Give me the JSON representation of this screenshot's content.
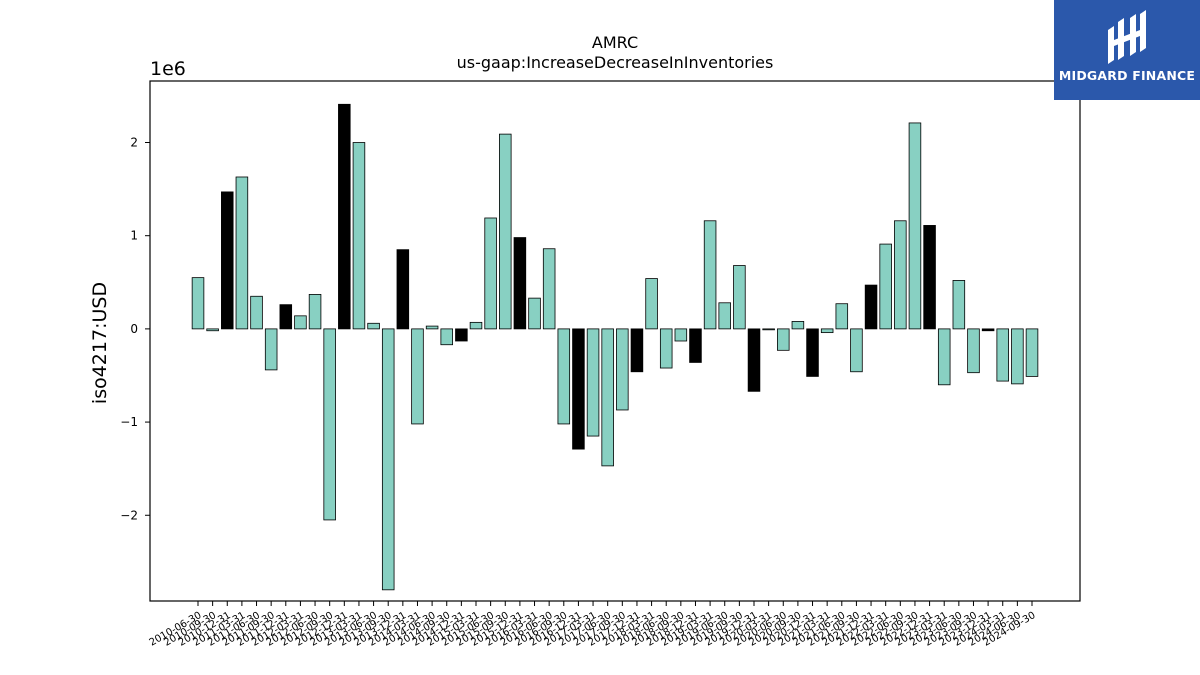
{
  "chart_data": {
    "type": "bar",
    "title": "AMRC\nus-gaap:IncreaseDecreaseInInventories",
    "title_lines": [
      "AMRC",
      "us-gaap:IncreaseDecreaseInInventories"
    ],
    "ylabel": "iso4217:USD",
    "offset_label": "1e6",
    "ylim": [
      -2.92,
      2.66
    ],
    "yticks": [
      -2,
      -1,
      0,
      1,
      2
    ],
    "ytick_labels": [
      "−2",
      "−1",
      "0",
      "1",
      "2"
    ],
    "colors": {
      "default": "#88d0c2",
      "highlight": "#000000",
      "edge": "#000000"
    },
    "categories": [
      "2010-06-30",
      "2010-09-30",
      "2010-12-31",
      "2011-03-31",
      "2011-06-30",
      "2011-09-30",
      "2011-12-31",
      "2012-03-31",
      "2012-06-30",
      "2012-09-30",
      "2012-12-31",
      "2013-03-31",
      "2013-06-30",
      "2013-09-30",
      "2013-12-31",
      "2014-03-31",
      "2014-06-30",
      "2014-09-30",
      "2014-12-31",
      "2015-03-31",
      "2015-06-30",
      "2015-09-30",
      "2015-12-31",
      "2016-03-31",
      "2016-06-30",
      "2016-09-30",
      "2016-12-31",
      "2017-03-31",
      "2017-06-30",
      "2017-09-30",
      "2017-12-31",
      "2018-03-31",
      "2018-06-30",
      "2018-09-30",
      "2018-12-31",
      "2019-03-31",
      "2019-06-30",
      "2019-09-30",
      "2019-12-31",
      "2020-03-31",
      "2020-06-30",
      "2020-09-30",
      "2020-12-31",
      "2021-03-31",
      "2021-06-30",
      "2021-09-30",
      "2021-12-31",
      "2022-03-31",
      "2022-06-30",
      "2022-09-30",
      "2022-12-31",
      "2023-03-31",
      "2023-06-30",
      "2023-09-30",
      "2023-12-31",
      "2024-03-31",
      "2024-06-30",
      "2024-09-30"
    ],
    "values": [
      0.55,
      -0.02,
      1.47,
      1.63,
      0.35,
      -0.44,
      0.26,
      0.14,
      0.37,
      -2.05,
      2.41,
      2.0,
      0.06,
      -2.8,
      0.85,
      -1.02,
      0.03,
      -0.17,
      -0.13,
      0.07,
      1.19,
      2.09,
      0.98,
      0.33,
      0.86,
      -1.02,
      -1.29,
      -1.15,
      -1.47,
      -0.87,
      -0.46,
      0.54,
      -0.42,
      -0.13,
      -0.36,
      1.16,
      0.28,
      0.68,
      -0.67,
      -0.01,
      -0.23,
      0.08,
      -0.51,
      -0.04,
      0.27,
      -0.46,
      0.47,
      0.91,
      1.16,
      2.21,
      1.11,
      -0.6,
      0.52,
      -0.47,
      -0.02,
      -0.56,
      -0.59,
      -0.51
    ],
    "highlight": [
      false,
      false,
      true,
      false,
      false,
      false,
      true,
      false,
      false,
      false,
      true,
      false,
      false,
      false,
      true,
      false,
      false,
      false,
      true,
      false,
      false,
      false,
      true,
      false,
      false,
      false,
      true,
      false,
      false,
      false,
      true,
      false,
      false,
      false,
      true,
      false,
      false,
      false,
      true,
      false,
      false,
      false,
      true,
      false,
      false,
      false,
      true,
      false,
      false,
      false,
      true,
      false,
      false,
      false,
      true,
      false,
      false,
      false
    ],
    "grid": false,
    "legend": "none"
  },
  "logo": {
    "text": "MIDGARD FINANCE"
  }
}
